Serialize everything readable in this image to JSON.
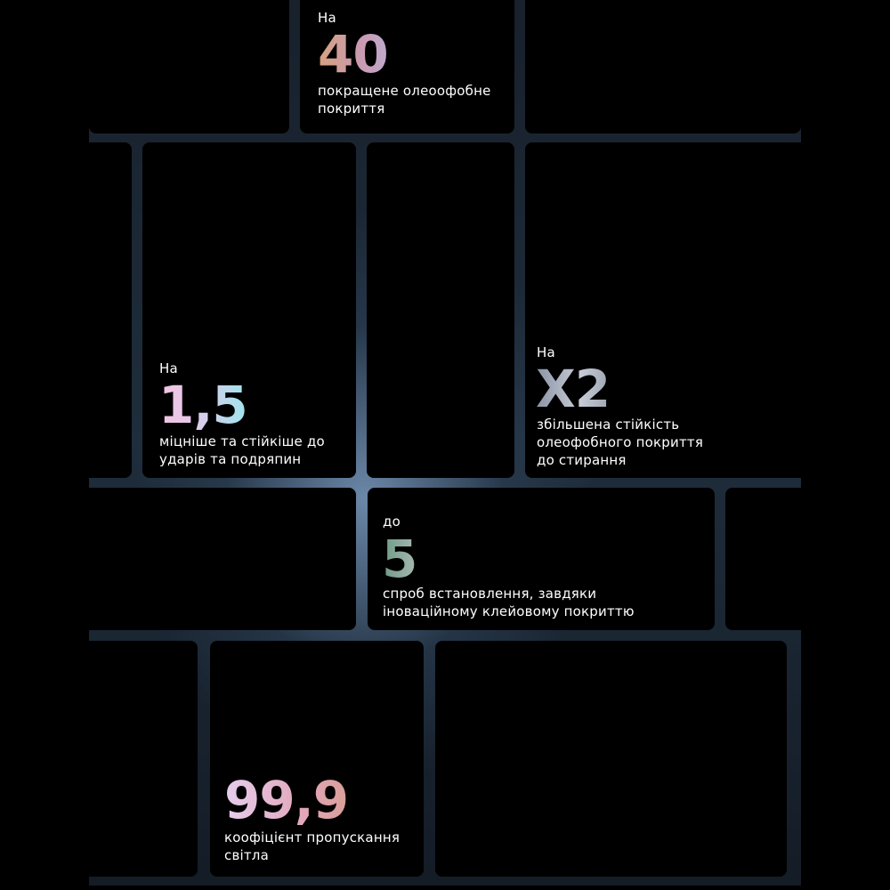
{
  "stats": [
    {
      "prefix": "На",
      "value": "40",
      "suffix": "%",
      "description": [
        "покращене олеоофобне",
        "покриття"
      ]
    },
    {
      "prefix": "На",
      "value": "1,5",
      "suffix": "",
      "description": [
        "міцніше та стійкіше до",
        "ударів та подряпин"
      ]
    },
    {
      "prefix": "На",
      "value": "X2",
      "suffix": "",
      "description": [
        "збільшена стійкість",
        "олеофобного покриття",
        "до стирання"
      ]
    },
    {
      "prefix": "до",
      "value": "5",
      "suffix": "",
      "description": [
        "спроб встановлення, завдяки",
        "іноваційному клейовому покриттю"
      ]
    },
    {
      "prefix": "",
      "value": "99,9",
      "suffix": "%",
      "description": [
        "коофіцієнт пропускання",
        "світла"
      ]
    }
  ],
  "colors": {
    "background": "#000000",
    "grid_gap": "#4a6684",
    "tile": "#000000"
  }
}
